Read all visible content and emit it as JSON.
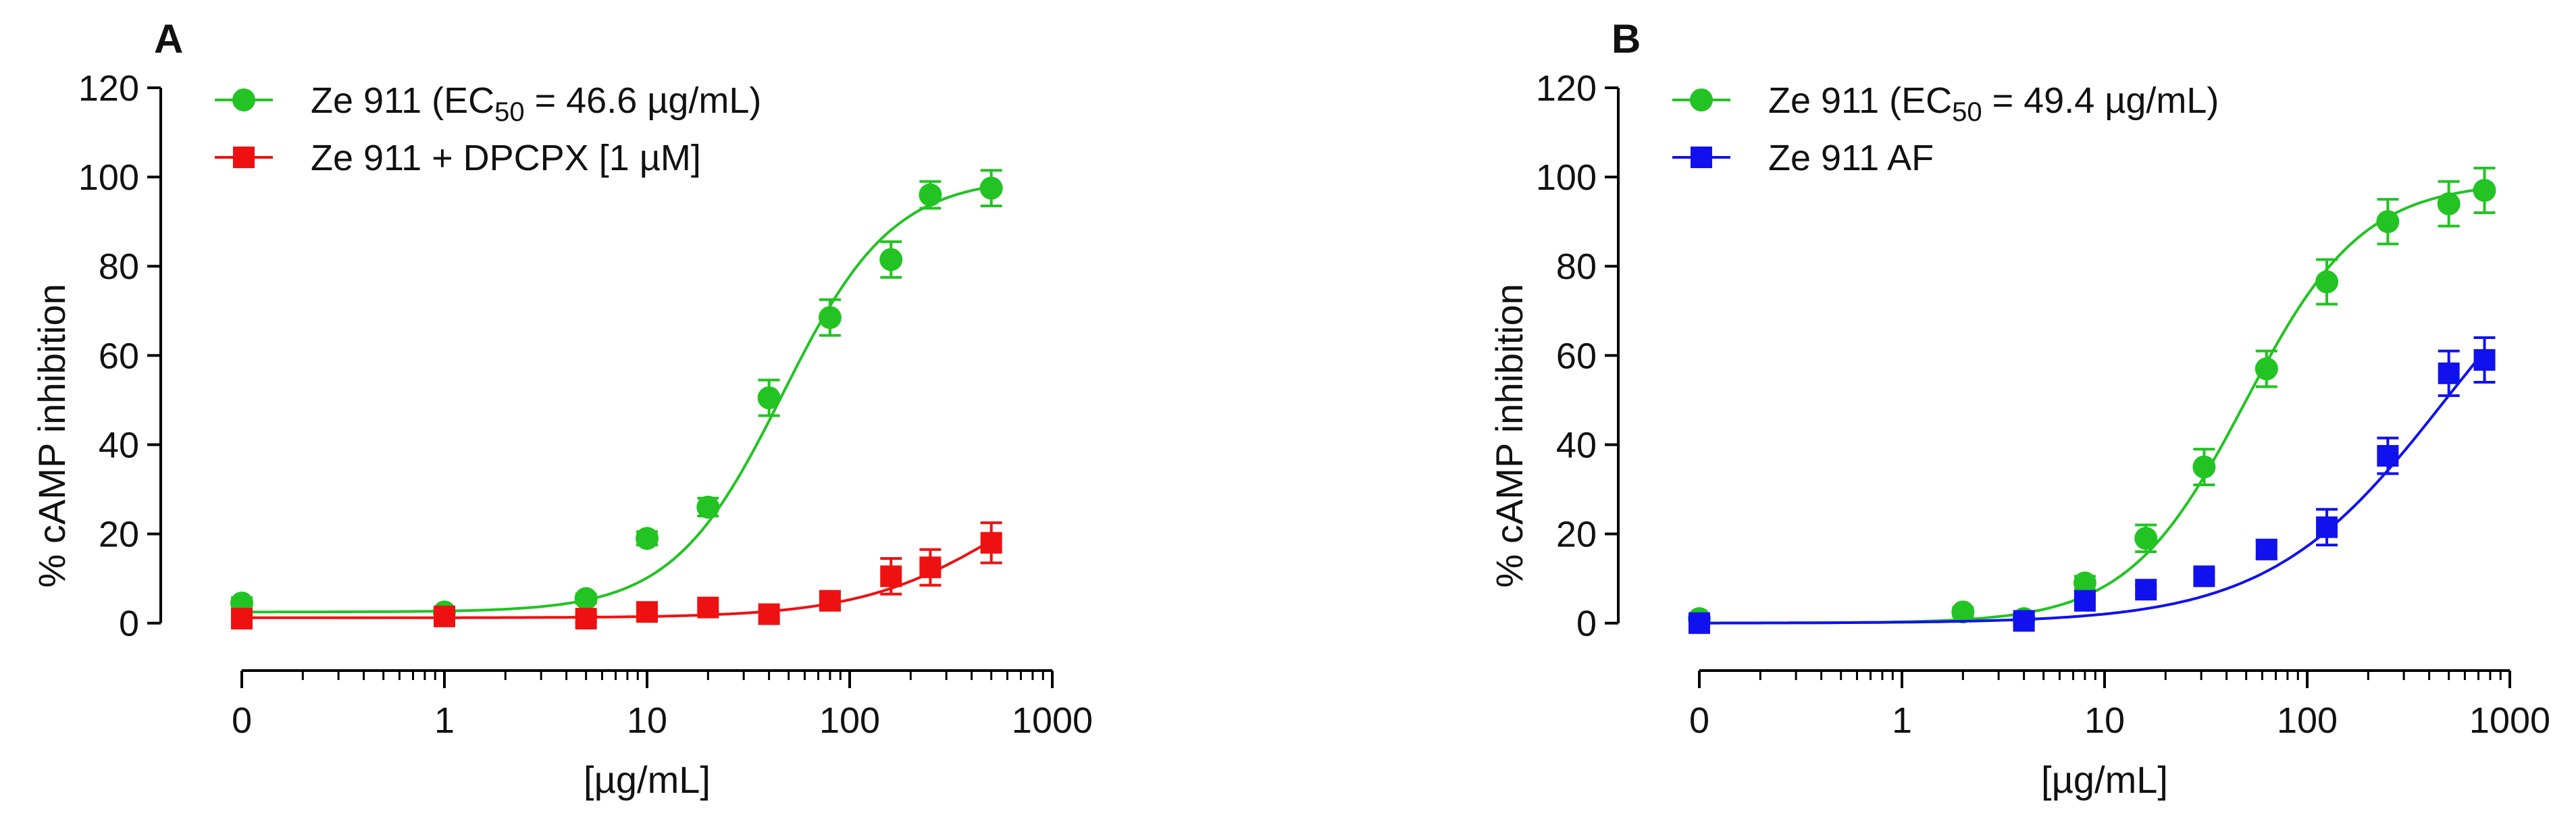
{
  "chart_data": [
    {
      "panel_label": "A",
      "type": "scatter",
      "title": "",
      "xlabel": "[µg/mL]",
      "ylabel": "% cAMP inhibition",
      "xscale": "log",
      "xlim": [
        0.1,
        1000
      ],
      "ylim": [
        -12,
        120
      ],
      "x_ticks": [
        "0",
        "1",
        "10",
        "100",
        "1000"
      ],
      "y_ticks": [
        "0",
        "20",
        "40",
        "60",
        "80",
        "100",
        "120"
      ],
      "legend_position": "top-left",
      "series": [
        {
          "name": "Ze 911 (EC50 = 46.6 µg/mL)",
          "legend_main": "Ze 911 (EC",
          "legend_sub": "50",
          "legend_rest": " = 46.6 µg/mL)",
          "color": "#22c322",
          "marker": "circle",
          "fit": {
            "bottom": 2.5,
            "top": 100,
            "ec50": 46.6,
            "hill": 1.6
          },
          "x": [
            0.1,
            1,
            5,
            10,
            20,
            40,
            80,
            160,
            250,
            500
          ],
          "y": [
            4.5,
            2.5,
            5.5,
            19,
            26,
            50.5,
            68.5,
            81.5,
            96,
            97.5
          ],
          "err": [
            1.2,
            1.0,
            1.0,
            1.5,
            2.0,
            4.0,
            4.0,
            4.0,
            3.0,
            4.0
          ]
        },
        {
          "name": "Ze 911 + DPCPX [1 µM]",
          "legend_main": "Ze 911 + DPCPX [1 µM]",
          "color": "#ee1111",
          "marker": "square",
          "fit": {
            "bottom": 1.2,
            "top": 40,
            "ec50": 600,
            "hill": 1.2
          },
          "x": [
            0.1,
            1,
            5,
            10,
            20,
            40,
            80,
            160,
            250,
            500
          ],
          "y": [
            1,
            1.5,
            1,
            2.5,
            3.5,
            2,
            5,
            10.5,
            12.5,
            18
          ],
          "err": [
            0.8,
            0.8,
            0.8,
            1.0,
            1.0,
            1.0,
            2.0,
            4.0,
            4.0,
            4.5
          ]
        }
      ]
    },
    {
      "panel_label": "B",
      "type": "scatter",
      "title": "",
      "xlabel": "[µg/mL]",
      "ylabel": "% cAMP inhibition",
      "xscale": "log",
      "xlim": [
        0.1,
        1000
      ],
      "ylim": [
        -12,
        120
      ],
      "x_ticks": [
        "0",
        "1",
        "10",
        "100",
        "1000"
      ],
      "y_ticks": [
        "0",
        "20",
        "40",
        "60",
        "80",
        "100",
        "120"
      ],
      "legend_position": "top-left",
      "series": [
        {
          "name": "Ze 911 (EC50 = 49.4 µg/mL)",
          "legend_main": "Ze 911 (EC",
          "legend_sub": "50",
          "legend_rest": " = 49.4 µg/mL)",
          "color": "#22c322",
          "marker": "circle",
          "fit": {
            "bottom": 0,
            "top": 99,
            "ec50": 49.4,
            "hill": 1.5
          },
          "x": [
            0.1,
            2,
            4,
            8,
            16,
            31,
            63,
            125,
            250,
            500,
            750
          ],
          "y": [
            1,
            2.5,
            1,
            9,
            19,
            35,
            57,
            76.5,
            90,
            94,
            97
          ],
          "err": [
            1.0,
            1.0,
            1.0,
            1.5,
            3.0,
            4.0,
            4.0,
            5.0,
            5.0,
            5.0,
            5.0
          ]
        },
        {
          "name": "Ze 911 AF",
          "legend_main": "Ze 911 AF",
          "color": "#1111ee",
          "marker": "square",
          "fit": {
            "bottom": 0,
            "top": 100,
            "ec50": 480,
            "hill": 1.0
          },
          "x": [
            0.1,
            4,
            8,
            16,
            31,
            63,
            125,
            250,
            500,
            750
          ],
          "y": [
            0,
            0.5,
            5,
            7.5,
            10.5,
            16.5,
            21.5,
            37.5,
            56,
            59
          ],
          "err": [
            0.8,
            0.8,
            1.0,
            1.0,
            1.0,
            2.0,
            4.0,
            4.0,
            5.0,
            5.0
          ]
        }
      ]
    }
  ]
}
